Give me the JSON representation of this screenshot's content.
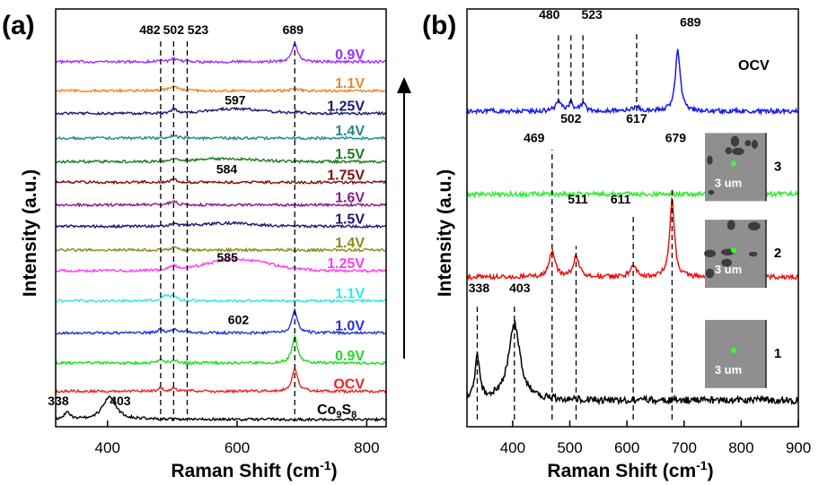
{
  "chart_data": [
    {
      "type": "line",
      "panel_label": "(a)",
      "xlabel_main": "Raman Shift ",
      "xlabel_unit_base": "(cm",
      "xlabel_unit_sup": "-1",
      "xlabel_unit_close": ")",
      "ylabel": "Intensity (a.u.)",
      "xlim": [
        320,
        830
      ],
      "xticks": [
        400,
        600,
        800
      ],
      "dashed_lines_x": [
        482,
        502,
        523,
        689
      ],
      "peak_labels": [
        {
          "text": "482",
          "x": 482,
          "row": 0
        },
        {
          "text": "502",
          "x": 502,
          "row": 0
        },
        {
          "text": "523",
          "x": 523,
          "row": 0
        },
        {
          "text": "689",
          "x": 689,
          "row": 0
        },
        {
          "text": "597",
          "x": 597,
          "row": 2
        },
        {
          "text": "584",
          "x": 584,
          "row": 5
        },
        {
          "text": "585",
          "x": 585,
          "row": 9
        },
        {
          "text": "602",
          "x": 602,
          "row": 11
        },
        {
          "text": "338",
          "x": 338,
          "row": 16
        },
        {
          "text": "403",
          "x": 403,
          "row": 16
        }
      ],
      "series": [
        {
          "name": "0.9V",
          "color": "#9B30FF",
          "baseline": 0.955,
          "peaks": [
            [
              482,
              0.006,
              4
            ],
            [
              502,
              0.007,
              5
            ],
            [
              523,
              0.004,
              4
            ],
            [
              689,
              0.05,
              5
            ]
          ],
          "broad": null
        },
        {
          "name": "1.1V",
          "color": "#E8892C",
          "baseline": 0.878,
          "peaks": [
            [
              502,
              0.012,
              8
            ],
            [
              689,
              0.006,
              5
            ]
          ],
          "broad": null
        },
        {
          "name": "1.25V",
          "color": "#191970",
          "baseline": 0.818,
          "peaks": [
            [
              502,
              0.01,
              6
            ],
            [
              689,
              0.004,
              5
            ]
          ],
          "broad": [
            597,
            0.012,
            60
          ]
        },
        {
          "name": "1.4V",
          "color": "#1F8A8A",
          "baseline": 0.752,
          "peaks": [
            [
              502,
              0.008,
              6
            ]
          ],
          "broad": null
        },
        {
          "name": "1.5V",
          "color": "#1E7B1E",
          "baseline": 0.69,
          "peaks": [
            [
              502,
              0.006,
              6
            ]
          ],
          "broad": [
            584,
            0.008,
            60
          ]
        },
        {
          "name": "1.75V",
          "color": "#7B1010",
          "baseline": 0.635,
          "peaks": [
            [
              502,
              0.008,
              5
            ]
          ],
          "broad": null
        },
        {
          "name": "1.6V",
          "color": "#8B1A8B",
          "baseline": 0.575,
          "peaks": [
            [
              502,
              0.01,
              6
            ]
          ],
          "broad": null
        },
        {
          "name": "1.5V",
          "color": "#191970",
          "baseline": 0.518,
          "peaks": [
            [
              502,
              0.006,
              6
            ]
          ],
          "broad": [
            585,
            0.008,
            60
          ]
        },
        {
          "name": "1.4V",
          "color": "#8B8B1A",
          "baseline": 0.455,
          "peaks": [
            [
              502,
              0.006,
              6
            ]
          ],
          "broad": null
        },
        {
          "name": "1.25V",
          "color": "#FF3EEF",
          "baseline": 0.4,
          "peaks": [
            [
              502,
              0.01,
              7
            ]
          ],
          "broad": [
            602,
            0.03,
            70
          ]
        },
        {
          "name": "1.1V",
          "color": "#33E6E6",
          "baseline": 0.32,
          "peaks": [
            [
              490,
              0.015,
              6
            ],
            [
              502,
              0.012,
              5
            ]
          ],
          "broad": null
        },
        {
          "name": "1.0V",
          "color": "#2233DD",
          "baseline": 0.235,
          "peaks": [
            [
              482,
              0.01,
              4
            ],
            [
              502,
              0.01,
              5
            ],
            [
              523,
              0.005,
              4
            ],
            [
              689,
              0.06,
              5
            ]
          ],
          "broad": null
        },
        {
          "name": "0.9V",
          "color": "#22DD22",
          "baseline": 0.155,
          "peaks": [
            [
              482,
              0.008,
              4
            ],
            [
              502,
              0.008,
              5
            ],
            [
              689,
              0.07,
              5
            ]
          ],
          "broad": null
        },
        {
          "name": "OCV",
          "color": "#EE2222",
          "baseline": 0.08,
          "peaks": [
            [
              482,
              0.008,
              4
            ],
            [
              502,
              0.008,
              5
            ],
            [
              523,
              0.004,
              4
            ],
            [
              689,
              0.06,
              5
            ]
          ],
          "broad": null
        },
        {
          "name": "Co9S8",
          "color": "#000000",
          "baseline": 0.005,
          "peaks": [
            [
              338,
              0.02,
              5
            ],
            [
              403,
              0.06,
              12
            ]
          ],
          "broad": null
        }
      ],
      "legend_labels": [
        {
          "text": "0.9V",
          "color": "#9B30FF"
        },
        {
          "text": "1.1V",
          "color": "#E8892C"
        },
        {
          "text": "1.25V",
          "color": "#191970"
        },
        {
          "text": "1.4V",
          "color": "#1F8A8A"
        },
        {
          "text": "1.5V",
          "color": "#1E7B1E"
        },
        {
          "text": "1.75V",
          "color": "#7B1010"
        },
        {
          "text": "1.6V",
          "color": "#8B1A8B"
        },
        {
          "text": "1.5V",
          "color": "#191970"
        },
        {
          "text": "1.4V",
          "color": "#8B8B1A"
        },
        {
          "text": "1.25V",
          "color": "#FF3EEF"
        },
        {
          "text": "1.1V",
          "color": "#33E6E6"
        },
        {
          "text": "1.0V",
          "color": "#2233DD"
        },
        {
          "text": "0.9V",
          "color": "#22DD22"
        },
        {
          "text": "OCV",
          "color": "#EE2222"
        }
      ],
      "co9s8_label": {
        "base": "Co",
        "sub1": "9",
        "mid": "S",
        "sub2": "8"
      }
    },
    {
      "type": "line",
      "panel_label": "(b)",
      "xlabel_main": "Raman Shift ",
      "xlabel_unit_base": "(cm",
      "xlabel_unit_sup": "-1",
      "xlabel_unit_close": ")",
      "ylabel": "Intensity (a.u.)",
      "xlim": [
        320,
        900
      ],
      "xticks": [
        400,
        500,
        600,
        700,
        800,
        900
      ],
      "series": [
        {
          "name": "OCV",
          "color": "#1A1AEE",
          "baseline": 0.8,
          "peaks": [
            [
              480,
              0.03,
              5
            ],
            [
              502,
              0.02,
              5
            ],
            [
              523,
              0.02,
              5
            ],
            [
              617,
              0.01,
              8
            ],
            [
              689,
              0.16,
              5
            ]
          ],
          "broad": null
        },
        {
          "name": "3",
          "color": "#33EE33",
          "baseline": 0.585,
          "peaks": [],
          "broad": null
        },
        {
          "name": "2",
          "color": "#EE1111",
          "baseline": 0.37,
          "peaks": [
            [
              469,
              0.07,
              6
            ],
            [
              511,
              0.05,
              6
            ],
            [
              611,
              0.03,
              6
            ],
            [
              679,
              0.2,
              5
            ]
          ],
          "broad": null
        },
        {
          "name": "1",
          "color": "#000000",
          "baseline": 0.05,
          "peaks": [
            [
              338,
              0.11,
              5
            ],
            [
              403,
              0.2,
              12
            ]
          ],
          "broad": null
        }
      ],
      "dashed_segments": [
        {
          "x": 480,
          "y0": 0.82,
          "y1": 1.0
        },
        {
          "x": 502,
          "y0": 0.82,
          "y1": 1.0
        },
        {
          "x": 523,
          "y0": 0.82,
          "y1": 1.0
        },
        {
          "x": 617,
          "y0": 0.8,
          "y1": 1.0
        },
        {
          "x": 469,
          "y0": 0.0,
          "y1": 0.7
        },
        {
          "x": 511,
          "y0": 0.0,
          "y1": 0.45
        },
        {
          "x": 611,
          "y0": 0.0,
          "y1": 0.53
        },
        {
          "x": 679,
          "y0": 0.0,
          "y1": 0.6
        },
        {
          "x": 338,
          "y0": 0.0,
          "y1": 0.3
        },
        {
          "x": 403,
          "y0": 0.0,
          "y1": 0.3
        }
      ],
      "peak_labels": [
        {
          "text": "480",
          "x": 480,
          "y": 1.04
        },
        {
          "text": "502",
          "x": 502,
          "y": 0.77
        },
        {
          "text": "523",
          "x": 523,
          "y": 1.04
        },
        {
          "text": "617",
          "x": 617,
          "y": 0.77
        },
        {
          "text": "689",
          "x": 689,
          "y": 1.02
        },
        {
          "text": "469",
          "x": 469,
          "y": 0.72
        },
        {
          "text": "511",
          "x": 511,
          "y": 0.56
        },
        {
          "text": "611",
          "x": 611,
          "y": 0.56
        },
        {
          "text": "679",
          "x": 679,
          "y": 0.72
        },
        {
          "text": "338",
          "x": 338,
          "y": 0.33
        },
        {
          "text": "403",
          "x": 403,
          "y": 0.33
        }
      ],
      "ocv_label": "OCV",
      "insets": [
        {
          "number": "3",
          "scale": "3 um",
          "y": 0.655
        },
        {
          "number": "2",
          "scale": "3 um",
          "y": 0.43
        },
        {
          "number": "1",
          "scale": "3 um",
          "y": 0.17
        }
      ]
    }
  ]
}
